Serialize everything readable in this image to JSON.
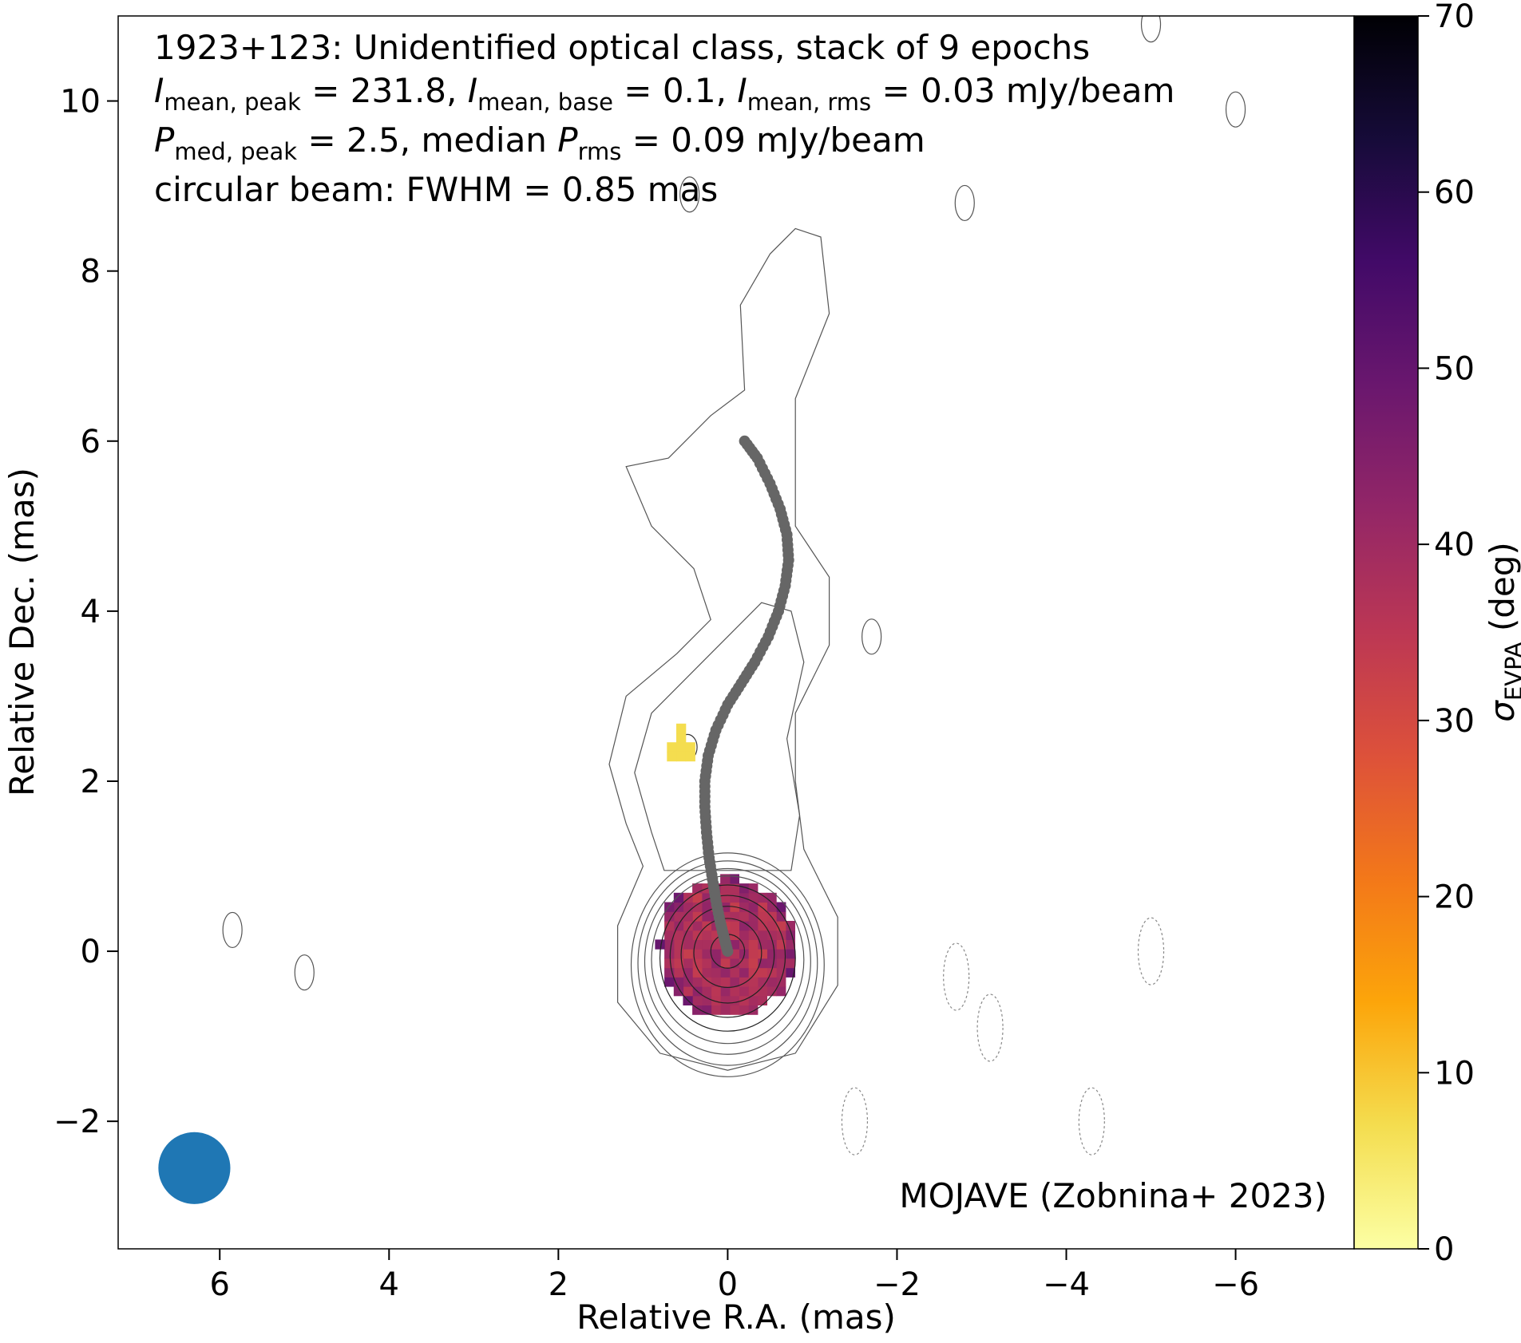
{
  "chart_data": {
    "type": "heatmap",
    "title": "1923+123: Unidentified optical class, stack of 9 epochs",
    "annotations": {
      "intensity_line": {
        "I": "I",
        "peak_sub": "mean, peak",
        "peak_val": " = 231.8, ",
        "base_sub": "mean, base",
        "base_val": " = 0.1, ",
        "rms_sub": "mean, rms",
        "rms_val": " = 0.03 mJy/beam"
      },
      "polarization_line": {
        "P": "P",
        "peak_sub": "med, peak",
        "peak_val": " = 2.5, median ",
        "rms_sub": "rms",
        "rms_val": " = 0.09 mJy/beam"
      },
      "beam_line": "circular beam: FWHM = 0.85 mas",
      "credit": "MOJAVE (Zobnina+ 2023)"
    },
    "xlabel": "Relative R.A. (mas)",
    "ylabel": "Relative Dec. (mas)",
    "xlim": [
      7.2,
      -7.4
    ],
    "ylim": [
      -3.5,
      11.0
    ],
    "x_ticks": [
      6,
      4,
      2,
      0,
      -2,
      -4,
      -6
    ],
    "y_ticks": [
      -2,
      0,
      2,
      4,
      6,
      8,
      10
    ],
    "colorbar": {
      "label": "σ",
      "label_sub": "EVPA",
      "label_unit": " (deg)",
      "range": [
        0,
        70
      ],
      "ticks": [
        0,
        10,
        20,
        30,
        40,
        50,
        60,
        70
      ],
      "colormap": "inferno_r",
      "stops": [
        "#fcffa4",
        "#f4dd4f",
        "#fca50a",
        "#f37819",
        "#dd513a",
        "#bc3754",
        "#932667",
        "#6a176e",
        "#420a68",
        "#160b39",
        "#000004"
      ]
    },
    "beam": {
      "fwhm_mas": 0.85,
      "center": [
        6.3,
        -2.55
      ],
      "color": "#1f77b4"
    },
    "ridge_line": {
      "color": "#666666",
      "points": [
        [
          -0.2,
          6.0
        ],
        [
          -0.35,
          5.8
        ],
        [
          -0.5,
          5.5
        ],
        [
          -0.62,
          5.2
        ],
        [
          -0.7,
          4.9
        ],
        [
          -0.72,
          4.6
        ],
        [
          -0.68,
          4.3
        ],
        [
          -0.6,
          4.0
        ],
        [
          -0.48,
          3.7
        ],
        [
          -0.32,
          3.4
        ],
        [
          -0.16,
          3.15
        ],
        [
          0.0,
          2.9
        ],
        [
          0.14,
          2.6
        ],
        [
          0.23,
          2.3
        ],
        [
          0.27,
          2.0
        ],
        [
          0.27,
          1.7
        ],
        [
          0.25,
          1.4
        ],
        [
          0.22,
          1.1
        ],
        [
          0.18,
          0.85
        ],
        [
          0.14,
          0.6
        ],
        [
          0.09,
          0.35
        ],
        [
          0.04,
          0.15
        ],
        [
          0.0,
          0.0
        ]
      ]
    },
    "evpa_sigma_map": {
      "core_center": [
        0.0,
        0.05
      ],
      "core_radius_mas": 0.85,
      "core_typical_deg": 38,
      "core_edge_deg": 48,
      "knot": {
        "center": [
          0.55,
          2.4
        ],
        "sigma_deg": 7
      }
    },
    "contours": {
      "core_rings_radius_mas": [
        0.2,
        0.4,
        0.55,
        0.68,
        0.8,
        0.9,
        0.98,
        1.06,
        1.14
      ],
      "outer_envelope": [
        [
          -0.5,
          8.2
        ],
        [
          -0.15,
          7.6
        ],
        [
          -0.2,
          6.6
        ],
        [
          0.2,
          6.3
        ],
        [
          0.7,
          5.8
        ],
        [
          1.2,
          5.7
        ],
        [
          0.9,
          5.0
        ],
        [
          0.4,
          4.5
        ],
        [
          0.2,
          3.9
        ],
        [
          0.6,
          3.5
        ],
        [
          1.2,
          3.0
        ],
        [
          1.4,
          2.2
        ],
        [
          1.2,
          1.5
        ],
        [
          1.0,
          1.0
        ],
        [
          1.3,
          0.3
        ],
        [
          1.3,
          -0.6
        ],
        [
          0.8,
          -1.2
        ],
        [
          0.0,
          -1.4
        ],
        [
          -0.8,
          -1.2
        ],
        [
          -1.3,
          -0.4
        ],
        [
          -1.3,
          0.4
        ],
        [
          -0.9,
          1.2
        ],
        [
          -0.8,
          2.0
        ],
        [
          -0.8,
          2.8
        ],
        [
          -1.2,
          3.6
        ],
        [
          -1.2,
          4.4
        ],
        [
          -0.8,
          5.0
        ],
        [
          -0.8,
          6.5
        ],
        [
          -1.2,
          7.5
        ],
        [
          -1.1,
          8.4
        ],
        [
          -0.8,
          8.5
        ],
        [
          -0.5,
          8.2
        ]
      ],
      "neg_islands": [
        [
          -2.7,
          -0.3
        ],
        [
          -3.1,
          -0.9
        ],
        [
          -5.0,
          0.0
        ],
        [
          -4.3,
          -2.0
        ],
        [
          -1.5,
          -2.0
        ]
      ],
      "pos_islands": [
        [
          -6.0,
          9.9
        ],
        [
          -2.8,
          8.8
        ],
        [
          -5.0,
          10.9
        ],
        [
          0.45,
          8.9
        ],
        [
          -1.7,
          3.7
        ],
        [
          5.85,
          0.25
        ],
        [
          5.0,
          -0.25
        ]
      ]
    }
  }
}
